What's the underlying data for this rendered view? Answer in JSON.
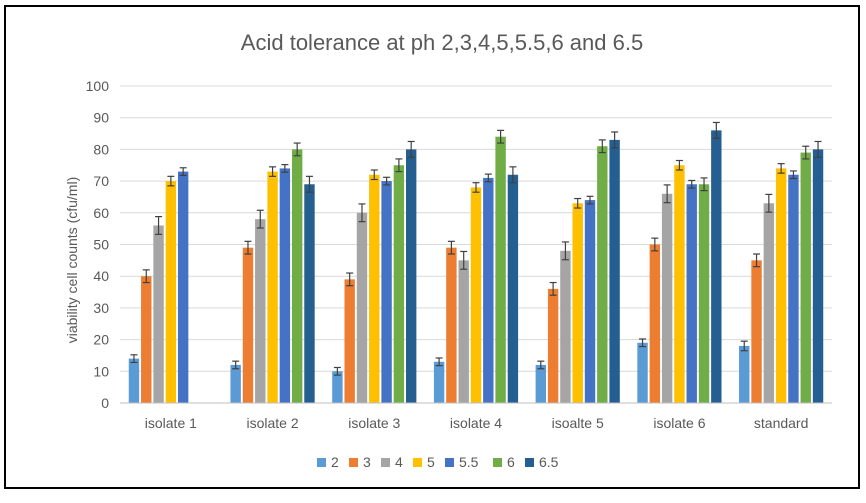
{
  "chart_data": {
    "type": "bar",
    "title": "Acid tolerance at ph 2,3,4,5,5.5,6 and 6.5",
    "xlabel": "",
    "ylabel": "viability cell counts (cfu/ml)",
    "ylim": [
      0,
      100
    ],
    "ytick_step": 10,
    "grid": true,
    "legend_position": "bottom",
    "error_bars": true,
    "categories": [
      "isolate 1",
      "isolate 2",
      "isolate 3",
      "isolate 4",
      "isoalte 5",
      "isolate 6",
      "standard"
    ],
    "series": [
      {
        "name": "2",
        "color": "#5B9BD5",
        "values": [
          14,
          12,
          10,
          13,
          12,
          19,
          18
        ],
        "errors": [
          1.2,
          1.2,
          1.2,
          1.2,
          1.2,
          1.2,
          1.5
        ]
      },
      {
        "name": "3",
        "color": "#ED7D31",
        "values": [
          40,
          49,
          39,
          49,
          36,
          50,
          45
        ],
        "errors": [
          2,
          2,
          2,
          2,
          2,
          2,
          2
        ]
      },
      {
        "name": "4",
        "color": "#A5A5A5",
        "values": [
          56,
          58,
          60,
          45,
          48,
          66,
          63
        ],
        "errors": [
          2.8,
          2.8,
          2.8,
          2.8,
          2.8,
          2.8,
          2.8
        ]
      },
      {
        "name": "5",
        "color": "#FFC000",
        "values": [
          70,
          73,
          72,
          68,
          63,
          75,
          74
        ],
        "errors": [
          1.5,
          1.5,
          1.5,
          1.5,
          1.5,
          1.5,
          1.5
        ]
      },
      {
        "name": "5.5",
        "color": "#4472C4",
        "values": [
          73,
          74,
          70,
          71,
          64,
          69,
          72
        ],
        "errors": [
          1.2,
          1.2,
          1.2,
          1.2,
          1.2,
          1.2,
          1.2
        ]
      },
      {
        "name": "6",
        "color": "#70AD47",
        "values": [
          null,
          80,
          75,
          84,
          81,
          69,
          79
        ],
        "errors": [
          0,
          2,
          2,
          2,
          2,
          2,
          2
        ]
      },
      {
        "name": "6.5",
        "color": "#255E91",
        "values": [
          null,
          69,
          80,
          72,
          83,
          86,
          80
        ],
        "errors": [
          0,
          2.5,
          2.5,
          2.5,
          2.5,
          2.5,
          2.5
        ]
      }
    ]
  }
}
